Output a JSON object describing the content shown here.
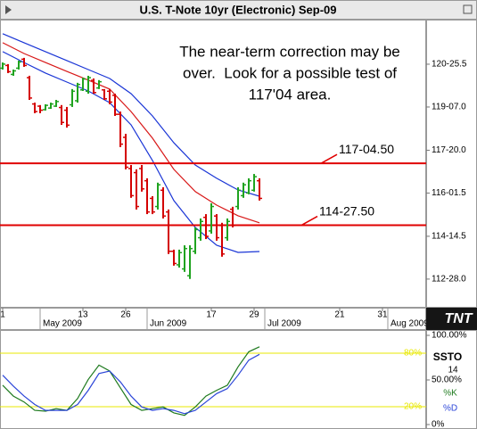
{
  "chart_data": [
    {
      "type": "ohlc",
      "title": "U.S. T-Note 10yr (Electronic) Sep-09",
      "annotation": [
        "The near-term correction may be",
        "over.  Look for a possible test of",
        "117'04 area."
      ],
      "up_color": "#1fa31f",
      "down_color": "#d40000",
      "ohlc": {
        "open": [
          120.65,
          120.75,
          120.42,
          120.65,
          120.98,
          120.3,
          119.33,
          119.25,
          119.12,
          119.18,
          119.25,
          119.2,
          119.1,
          119.3,
          119.45,
          119.85,
          119.8,
          120.2,
          119.92,
          119.85,
          119.8,
          119.65,
          118.95,
          118.1,
          116.95,
          116.8,
          116.95,
          116.5,
          115.85,
          115.55,
          116.15,
          115.35,
          113.9,
          113.4,
          113.25,
          113.0,
          113.9,
          114.4,
          115.15,
          114.65,
          115.2,
          114.85,
          114.4,
          115.45,
          115.55,
          115.95,
          116.05,
          116.15,
          116.5
        ],
        "high": [
          120.86,
          120.8,
          120.6,
          120.93,
          121.03,
          120.37,
          119.38,
          119.29,
          119.32,
          119.38,
          119.48,
          119.29,
          119.22,
          119.88,
          120.11,
          120.3,
          120.37,
          120.27,
          120.21,
          119.88,
          119.88,
          119.71,
          119.05,
          118.23,
          117.08,
          116.92,
          117.08,
          116.59,
          115.93,
          116.43,
          116.26,
          115.44,
          113.96,
          113.96,
          114.12,
          114.12,
          114.78,
          115.11,
          115.27,
          115.67,
          115.27,
          114.95,
          115.11,
          115.54,
          116.26,
          116.43,
          116.59,
          116.75,
          116.59
        ],
        "low": [
          120.6,
          120.47,
          120.37,
          120.6,
          120.7,
          119.48,
          118.99,
          118.99,
          119.09,
          119.15,
          119.22,
          118.56,
          118.46,
          119.22,
          119.38,
          119.81,
          119.71,
          119.71,
          119.88,
          119.48,
          119.32,
          118.89,
          117.74,
          116.92,
          115.87,
          115.44,
          116.1,
          115.27,
          115.27,
          115.44,
          115.11,
          113.8,
          113.37,
          113.3,
          113.14,
          112.88,
          113.8,
          114.29,
          114.35,
          114.55,
          114.29,
          113.7,
          114.29,
          114.78,
          115.44,
          115.87,
          116.0,
          116.1,
          115.77
        ],
        "close": [
          120.8,
          120.52,
          120.55,
          120.88,
          120.75,
          119.55,
          119.05,
          119.1,
          119.28,
          119.33,
          119.42,
          118.65,
          118.55,
          119.8,
          120.05,
          120.25,
          120.3,
          119.75,
          120.15,
          119.52,
          119.4,
          118.95,
          117.85,
          117.0,
          115.95,
          115.55,
          116.2,
          115.35,
          115.35,
          116.35,
          115.2,
          113.9,
          113.45,
          113.85,
          114.0,
          114.0,
          114.7,
          115.0,
          114.45,
          115.55,
          114.4,
          113.8,
          115.0,
          114.85,
          116.15,
          116.35,
          116.5,
          116.65,
          115.85
        ]
      },
      "line_x": [
        0,
        4,
        8,
        12,
        16,
        20,
        24,
        28,
        32,
        36,
        40,
        44,
        48
      ],
      "series": [
        {
          "color": "#1a35d6",
          "values": [
            121.92,
            121.59,
            121.26,
            120.93,
            120.6,
            120.27,
            119.71,
            118.89,
            117.9,
            117.08,
            116.59,
            116.16,
            115.93
          ]
        },
        {
          "color": "#d81818",
          "values": [
            121.59,
            121.19,
            120.86,
            120.53,
            120.21,
            119.88,
            119.05,
            118.07,
            116.92,
            116.1,
            115.6,
            115.21,
            114.95
          ]
        },
        {
          "color": "#1a35d6",
          "values": [
            121.26,
            120.86,
            120.47,
            120.14,
            119.81,
            119.38,
            118.56,
            117.25,
            115.77,
            114.78,
            114.12,
            113.86,
            113.89
          ]
        }
      ],
      "levels": [
        {
          "value": 117.140625,
          "label": "117-04.50"
        },
        {
          "value": 114.859375,
          "label": "114-27.50"
        }
      ],
      "level_color": "#e00000",
      "xlim": [
        -0.5,
        79.17
      ],
      "ylim": [
        111.82,
        122.44
      ],
      "yticks": [
        {
          "value": 120.796875,
          "label": "120-25.5"
        },
        {
          "value": 119.21875,
          "label": "119-07.0"
        },
        {
          "value": 117.625,
          "label": "117-20.0"
        },
        {
          "value": 116.046875,
          "label": "116-01.5"
        },
        {
          "value": 114.453125,
          "label": "114-14.5"
        },
        {
          "value": 112.875,
          "label": "112-28.0"
        }
      ],
      "xticks": [
        {
          "value": 0,
          "label": "1"
        },
        {
          "value": 15,
          "label": "13"
        },
        {
          "value": 23,
          "label": "26"
        },
        {
          "value": 39,
          "label": "17"
        },
        {
          "value": 47,
          "label": "29"
        },
        {
          "value": 63,
          "label": "21"
        },
        {
          "value": 71,
          "label": "31"
        }
      ],
      "month_labels": [
        {
          "value": 7,
          "label": "May 2009"
        },
        {
          "value": 27,
          "label": "Jun 2009"
        },
        {
          "value": 49,
          "label": "Jul 2009"
        },
        {
          "value": 72,
          "label": "Aug 2009"
        }
      ],
      "logo": "TNT"
    },
    {
      "type": "line",
      "title": "SSTO",
      "period": 14,
      "x": [
        0,
        2,
        4,
        6,
        8,
        10,
        12,
        14,
        16,
        18,
        20,
        22,
        24,
        26,
        28,
        30,
        32,
        34,
        36,
        38,
        40,
        42,
        44,
        46,
        48
      ],
      "series": [
        {
          "name": "%K",
          "color": "#1e7a1e",
          "values": [
            44.1,
            31.9,
            25.3,
            15.9,
            15.0,
            17.8,
            15.9,
            29.1,
            50.6,
            66.6,
            60.0,
            41.2,
            22.5,
            15.9,
            17.8,
            19.7,
            13.1,
            10.3,
            19.7,
            31.9,
            38.4,
            44.1,
            64.7,
            81.6,
            87.2
          ]
        },
        {
          "name": "%D",
          "color": "#2b45d8",
          "values": [
            55.3,
            43.1,
            31.9,
            22.5,
            15.9,
            15.9,
            15.9,
            22.5,
            38.4,
            57.2,
            60.0,
            47.8,
            31.9,
            19.7,
            15.9,
            17.8,
            15.9,
            12.2,
            15.9,
            25.3,
            34.7,
            40.3,
            55.3,
            72.2,
            78.7
          ]
        }
      ],
      "levels": [
        {
          "value": 80,
          "label": "80%"
        },
        {
          "value": 20,
          "label": "20%"
        }
      ],
      "level_color": "#e8e800",
      "xlim": [
        -0.5,
        79.17
      ],
      "ylim": [
        0,
        100
      ],
      "yticks": [
        {
          "value": 100,
          "label": "100.00%"
        },
        {
          "value": 50,
          "label": "50.00%"
        },
        {
          "value": 0,
          "label": "0%"
        }
      ]
    }
  ]
}
